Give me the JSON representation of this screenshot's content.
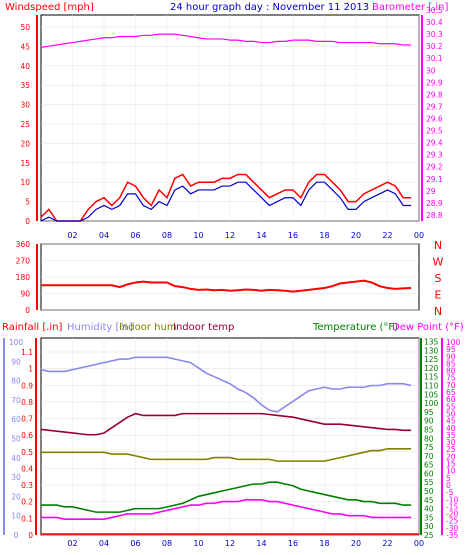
{
  "chart_data": [
    {
      "type": "line",
      "title": "24 hour graph day : November 11 2013",
      "ylabel": "Windspeed [mph]",
      "y2label": "Barometer [.in]",
      "ylim": [
        0,
        50
      ],
      "y2lim": [
        28.75,
        30.5
      ],
      "yticks": [
        "0",
        "5",
        "10",
        "15",
        "20",
        "25",
        "30",
        "35",
        "40",
        "45",
        "50"
      ],
      "y2ticks": [
        "28.8",
        "28.9",
        "29",
        "29.1",
        "29.2",
        "29.3",
        "29.4",
        "29.5",
        "29.6",
        "29.7",
        "29.8",
        "29.9",
        "30",
        "30.1",
        "30.2",
        "30.3",
        "30.4",
        "30.5"
      ],
      "xticks": [
        "02",
        "04",
        "06",
        "08",
        "10",
        "12",
        "14",
        "16",
        "18",
        "20",
        "22",
        "00"
      ],
      "x_hours": [
        0,
        0.5,
        1,
        1.5,
        2,
        2.5,
        3,
        3.5,
        4,
        4.5,
        5,
        5.5,
        6,
        6.5,
        7,
        7.5,
        8,
        8.5,
        9,
        9.5,
        10,
        10.5,
        11,
        11.5,
        12,
        12.5,
        13,
        13.5,
        14,
        14.5,
        15,
        15.5,
        16,
        16.5,
        17,
        17.5,
        18,
        18.5,
        19,
        19.5,
        20,
        20.5,
        21,
        21.5,
        22,
        22.5,
        23,
        23.5
      ],
      "series": [
        {
          "color": "#ff0000",
          "axis": "left",
          "values": [
            1,
            3,
            0,
            0,
            0,
            0,
            3,
            5,
            6,
            4,
            6,
            10,
            9,
            6,
            4,
            8,
            6,
            11,
            12,
            9,
            10,
            10,
            10,
            11,
            11,
            12,
            12,
            10,
            8,
            6,
            7,
            8,
            8,
            6,
            10,
            12,
            12,
            10,
            8,
            5,
            5,
            7,
            8,
            9,
            10,
            9,
            6,
            6
          ]
        },
        {
          "color": "#0000cc",
          "axis": "left",
          "values": [
            0,
            1,
            0,
            0,
            0,
            0,
            1,
            3,
            4,
            3,
            4,
            7,
            7,
            4,
            3,
            5,
            4,
            8,
            9,
            7,
            8,
            8,
            8,
            9,
            9,
            10,
            10,
            8,
            6,
            4,
            5,
            6,
            6,
            4,
            8,
            10,
            10,
            8,
            6,
            3,
            3,
            5,
            6,
            7,
            8,
            7,
            4,
            4
          ]
        },
        {
          "color": "#ff00ff",
          "axis": "right",
          "values": [
            30.19,
            30.2,
            30.21,
            30.22,
            30.23,
            30.24,
            30.25,
            30.26,
            30.27,
            30.27,
            30.28,
            30.28,
            30.28,
            30.29,
            30.29,
            30.3,
            30.3,
            30.3,
            30.29,
            30.28,
            30.27,
            30.26,
            30.26,
            30.26,
            30.25,
            30.25,
            30.24,
            30.24,
            30.23,
            30.23,
            30.24,
            30.24,
            30.25,
            30.25,
            30.25,
            30.24,
            30.24,
            30.24,
            30.23,
            30.23,
            30.23,
            30.23,
            30.23,
            30.22,
            30.22,
            30.22,
            30.21,
            30.21
          ]
        }
      ]
    },
    {
      "type": "line",
      "ylabel": "",
      "ylim": [
        0,
        360
      ],
      "yticks": [
        "0",
        "90",
        "180",
        "270",
        "360"
      ],
      "directions": [
        "N",
        "W",
        "S",
        "E",
        "N"
      ],
      "xticks": [
        "02",
        "04",
        "06",
        "08",
        "10",
        "12",
        "14",
        "16",
        "18",
        "20",
        "22",
        "00"
      ],
      "series": [
        {
          "color": "#ff0000",
          "values": [
            135,
            135,
            135,
            135,
            135,
            135,
            135,
            135,
            135,
            135,
            125,
            140,
            150,
            155,
            150,
            150,
            150,
            130,
            125,
            115,
            110,
            112,
            108,
            110,
            105,
            108,
            112,
            110,
            105,
            110,
            108,
            105,
            100,
            105,
            110,
            115,
            120,
            130,
            145,
            150,
            155,
            160,
            150,
            130,
            120,
            115,
            118,
            120
          ]
        }
      ]
    },
    {
      "type": "line",
      "labels": {
        "rain": "Rainfall [.in]",
        "humidity": "Humidity [%]",
        "indoor_hum": "Indoor hum",
        "indoor_temp": "Indoor temp",
        "temperature": "Temperature (°F)",
        "dew_point": "Dew Point (°F)"
      },
      "rain_ticks": [
        "0",
        "0.1",
        "0.2",
        "0.3",
        "0.4",
        "0.5",
        "0.6",
        "0.7",
        "0.8",
        "0.9",
        "1",
        "1.1"
      ],
      "humidity_ticks": [
        "0",
        "10",
        "20",
        "30",
        "40",
        "50",
        "60",
        "70",
        "80",
        "90",
        "100"
      ],
      "temp_ticks": [
        "25",
        "30",
        "35",
        "40",
        "45",
        "50",
        "55",
        "60",
        "65",
        "70",
        "75",
        "80",
        "85",
        "90",
        "95",
        "100",
        "105",
        "110",
        "115",
        "120",
        "125",
        "130",
        "135"
      ],
      "dew_ticks": [
        "-35",
        "-30",
        "-25",
        "-20",
        "-15",
        "-10",
        "-5",
        "0",
        "5",
        "10",
        "15",
        "20",
        "25",
        "30",
        "35",
        "40",
        "45",
        "50",
        "55",
        "60",
        "65",
        "70",
        "75",
        "80",
        "85",
        "90",
        "95",
        "100"
      ],
      "xticks": [
        "02",
        "04",
        "06",
        "08",
        "10",
        "12",
        "14",
        "16",
        "18",
        "20",
        "22",
        "00"
      ],
      "temp_lim": [
        25,
        137
      ],
      "series": [
        {
          "name": "Humidity",
          "color": "#8888ee",
          "values": [
            119,
            118,
            118,
            118,
            119,
            120,
            121,
            122,
            123,
            124,
            125,
            125,
            126,
            126,
            126,
            126,
            126,
            125,
            124,
            123,
            120,
            117,
            115,
            113,
            111,
            108,
            106,
            103,
            99,
            96,
            95,
            98,
            101,
            104,
            107,
            108,
            109,
            108,
            108,
            109,
            109,
            109,
            110,
            110,
            111,
            111,
            111,
            110
          ]
        },
        {
          "name": "Indoor temp",
          "color": "#990033",
          "values": [
            85,
            84.5,
            84,
            83.5,
            83,
            82.5,
            82,
            82,
            83,
            86,
            89,
            92,
            94,
            93,
            93,
            93,
            93,
            93,
            94,
            94,
            94,
            94,
            94,
            94,
            94,
            94,
            94,
            94,
            94,
            93.5,
            93,
            92.5,
            92,
            91,
            90,
            89,
            88,
            88,
            88,
            87.5,
            87,
            86.5,
            86,
            85.5,
            85,
            85,
            84.5,
            84.5
          ]
        },
        {
          "name": "Indoor hum",
          "color": "#808000",
          "values": [
            72,
            72,
            72,
            72,
            72,
            72,
            72,
            72,
            72,
            71,
            71,
            71,
            70,
            69,
            68,
            68,
            68,
            68,
            68,
            68,
            68,
            68,
            69,
            69,
            69,
            68,
            68,
            68,
            68,
            68,
            67,
            67,
            67,
            67,
            67,
            67,
            67,
            68,
            69,
            70,
            71,
            72,
            73,
            73,
            74,
            74,
            74,
            74
          ]
        },
        {
          "name": "Temperature",
          "color": "#008000",
          "values": [
            42,
            42,
            42,
            41,
            41,
            40,
            39,
            38,
            38,
            38,
            38,
            39,
            40,
            40,
            40,
            40,
            41,
            42,
            43,
            45,
            47,
            48,
            49,
            50,
            51,
            52,
            53,
            54,
            54,
            55,
            55,
            54,
            53,
            51,
            50,
            49,
            48,
            47,
            46,
            45,
            45,
            44,
            44,
            43,
            43,
            43,
            42,
            42
          ]
        },
        {
          "name": "Dew Point",
          "color": "#ff00ff",
          "values": [
            35,
            35,
            35,
            34,
            34,
            34,
            34,
            34,
            34,
            35,
            36,
            37,
            37,
            37,
            37,
            38,
            39,
            40,
            41,
            42,
            42,
            43,
            43,
            44,
            44,
            44,
            45,
            45,
            45,
            44,
            44,
            43,
            42,
            41,
            40,
            39,
            38,
            37,
            37,
            36,
            36,
            36,
            35,
            35,
            35,
            35,
            35,
            35
          ]
        }
      ]
    }
  ]
}
